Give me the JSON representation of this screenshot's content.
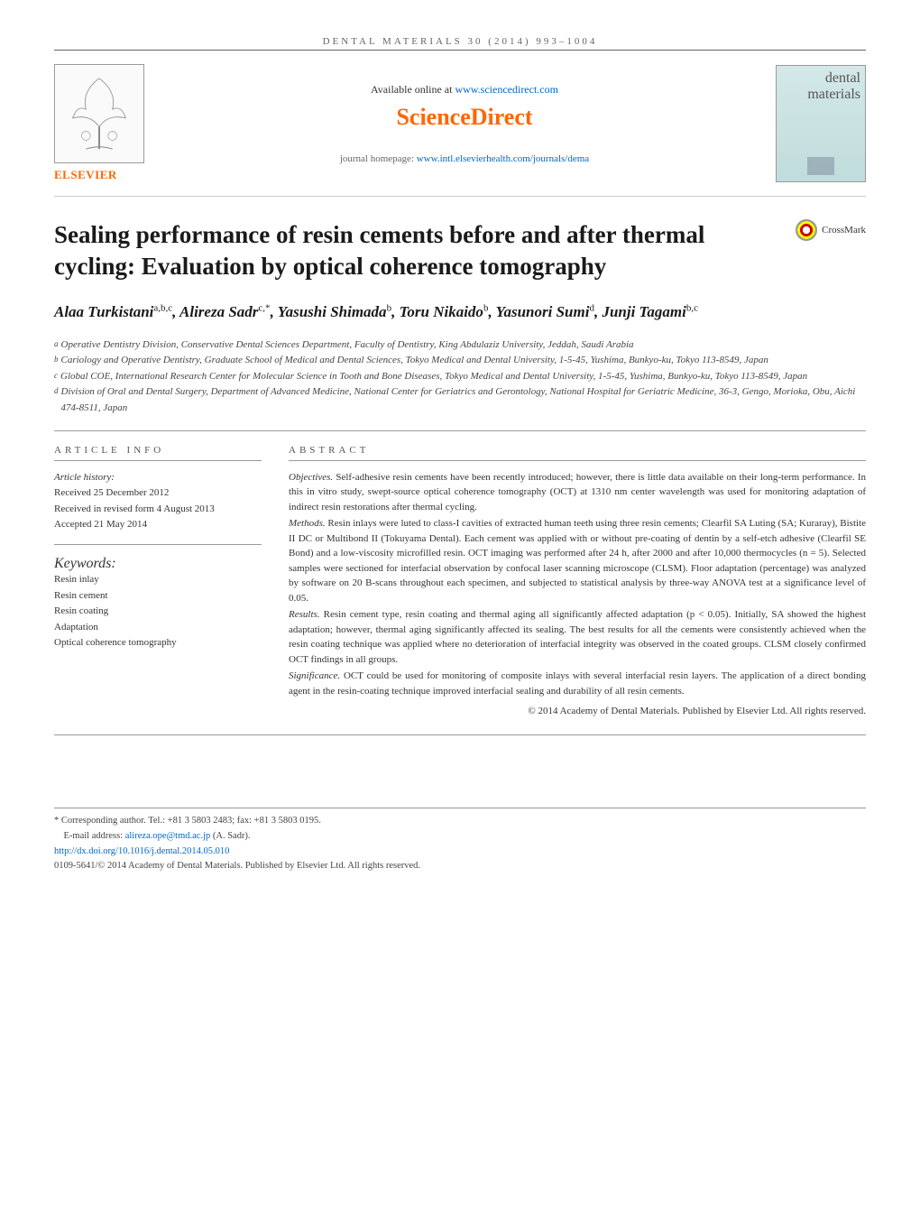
{
  "header": {
    "journal_ref": "DENTAL MATERIALS 30 (2014) 993–1004"
  },
  "top": {
    "available_text": "Available online at ",
    "available_link": "www.sciencedirect.com",
    "sciencedirect": "ScienceDirect",
    "homepage_label": "journal homepage: ",
    "homepage_link": "www.intl.elsevierhealth.com/journals/dema",
    "elsevier_label": "ELSEVIER",
    "cover_title": "dental materials"
  },
  "crossmark": "CrossMark",
  "title": "Sealing performance of resin cements before and after thermal cycling: Evaluation by optical coherence tomography",
  "authors_html": "Alaa Turkistani<sup>a,b,c</sup>, Alireza Sadr<sup>c,*</sup>, Yasushi Shimada<sup>b</sup>, Toru Nikaido<sup>b</sup>, Yasunori Sumi<sup>d</sup>, Junji Tagami<sup>b,c</sup>",
  "affiliations": [
    {
      "sup": "a",
      "text": "Operative Dentistry Division, Conservative Dental Sciences Department, Faculty of Dentistry, King Abdulaziz University, Jeddah, Saudi Arabia"
    },
    {
      "sup": "b",
      "text": "Cariology and Operative Dentistry, Graduate School of Medical and Dental Sciences, Tokyo Medical and Dental University, 1-5-45, Yushima, Bunkyo-ku, Tokyo 113-8549, Japan"
    },
    {
      "sup": "c",
      "text": "Global COE, International Research Center for Molecular Science in Tooth and Bone Diseases, Tokyo Medical and Dental University, 1-5-45, Yushima, Bunkyo-ku, Tokyo 113-8549, Japan"
    },
    {
      "sup": "d",
      "text": "Division of Oral and Dental Surgery, Department of Advanced Medicine, National Center for Geriatrics and Gerontology, National Hospital for Geriatric Medicine, 36-3, Gengo, Morioka, Obu, Aichi 474-8511, Japan"
    }
  ],
  "article_info": {
    "header": "ARTICLE INFO",
    "history_label": "Article history:",
    "received": "Received 25 December 2012",
    "revised": "Received in revised form 4 August 2013",
    "accepted": "Accepted 21 May 2014",
    "keywords_label": "Keywords:",
    "keywords": [
      "Resin inlay",
      "Resin cement",
      "Resin coating",
      "Adaptation",
      "Optical coherence tomography"
    ]
  },
  "abstract": {
    "header": "ABSTRACT",
    "sections": [
      {
        "label": "Objectives.",
        "text": " Self-adhesive resin cements have been recently introduced; however, there is little data available on their long-term performance. In this in vitro study, swept-source optical coherence tomography (OCT) at 1310 nm center wavelength was used for monitoring adaptation of indirect resin restorations after thermal cycling."
      },
      {
        "label": "Methods.",
        "text": " Resin inlays were luted to class-I cavities of extracted human teeth using three resin cements; Clearfil SA Luting (SA; Kuraray), Bistite II DC or Multibond II (Tokuyama Dental). Each cement was applied with or without pre-coating of dentin by a self-etch adhesive (Clearfil SE Bond) and a low-viscosity microfilled resin. OCT imaging was performed after 24 h, after 2000 and after 10,000 thermocycles (n = 5). Selected samples were sectioned for interfacial observation by confocal laser scanning microscope (CLSM). Floor adaptation (percentage) was analyzed by software on 20 B-scans throughout each specimen, and subjected to statistical analysis by three-way ANOVA test at a significance level of 0.05."
      },
      {
        "label": "Results.",
        "text": " Resin cement type, resin coating and thermal aging all significantly affected adaptation (p < 0.05). Initially, SA showed the highest adaptation; however, thermal aging significantly affected its sealing. The best results for all the cements were consistently achieved when the resin coating technique was applied where no deterioration of interfacial integrity was observed in the coated groups. CLSM closely confirmed OCT findings in all groups."
      },
      {
        "label": "Significance.",
        "text": " OCT could be used for monitoring of composite inlays with several interfacial resin layers. The application of a direct bonding agent in the resin-coating technique improved interfacial sealing and durability of all resin cements."
      }
    ],
    "copyright": "© 2014 Academy of Dental Materials. Published by Elsevier Ltd. All rights reserved."
  },
  "footer": {
    "corresponding": "* Corresponding author. Tel.: +81 3 5803 2483; fax: +81 3 5803 0195.",
    "email_label": "E-mail address: ",
    "email": "alireza.ope@tmd.ac.jp",
    "email_author": " (A. Sadr).",
    "doi": "http://dx.doi.org/10.1016/j.dental.2014.05.010",
    "issn_copyright": "0109-5641/© 2014 Academy of Dental Materials. Published by Elsevier Ltd. All rights reserved."
  },
  "colors": {
    "orange": "#ff6600",
    "link": "#0066cc",
    "text": "#333333",
    "border": "#999999"
  }
}
